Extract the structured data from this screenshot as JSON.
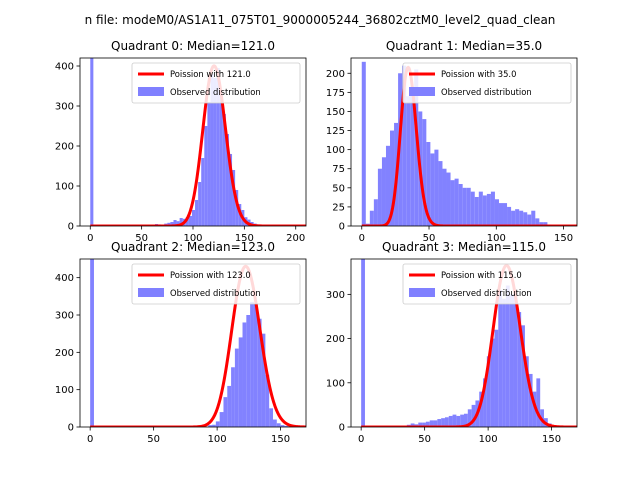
{
  "suptitle": "n file: modeM0/AS1A11_075T01_9000005244_36802cztM0_level2_quad_clean",
  "colors": {
    "hist": "#8080ff",
    "poisson": "#ff0000",
    "axis": "#000000",
    "legend_edge": "#cccccc"
  },
  "chart_data": [
    {
      "type": "bar",
      "title": "Quadrant 0: Median=121.0",
      "xlim": [
        -10,
        210
      ],
      "ylim": [
        0,
        420
      ],
      "xticks": [
        "0",
        "50",
        "100",
        "150",
        "200"
      ],
      "yticks": [
        "0",
        "100",
        "200",
        "300",
        "400"
      ],
      "median": 121.0,
      "peak": 400,
      "bar_width": 3,
      "bars": [
        [
          0,
          420
        ],
        [
          51,
          3
        ],
        [
          54,
          2
        ],
        [
          57,
          3
        ],
        [
          63,
          5
        ],
        [
          66,
          4
        ],
        [
          69,
          3
        ],
        [
          72,
          6
        ],
        [
          75,
          8
        ],
        [
          78,
          10
        ],
        [
          81,
          15
        ],
        [
          84,
          12
        ],
        [
          87,
          20
        ],
        [
          90,
          18
        ],
        [
          93,
          22
        ],
        [
          96,
          25
        ],
        [
          99,
          40
        ],
        [
          102,
          65
        ],
        [
          105,
          110
        ],
        [
          108,
          170
        ],
        [
          111,
          250
        ],
        [
          114,
          310
        ],
        [
          117,
          380
        ],
        [
          120,
          370
        ],
        [
          123,
          395
        ],
        [
          126,
          330
        ],
        [
          129,
          280
        ],
        [
          132,
          230
        ],
        [
          135,
          180
        ],
        [
          138,
          140
        ],
        [
          141,
          90
        ],
        [
          144,
          55
        ],
        [
          147,
          40
        ],
        [
          150,
          22
        ],
        [
          153,
          16
        ],
        [
          156,
          10
        ],
        [
          159,
          6
        ],
        [
          162,
          4
        ],
        [
          165,
          3
        ]
      ],
      "legend": [
        {
          "label": "Poission with 121.0"
        },
        {
          "label": "Observed distribution"
        }
      ]
    },
    {
      "type": "bar",
      "title": "Quadrant 1: Median=35.0",
      "xlim": [
        -8,
        160
      ],
      "ylim": [
        0,
        220
      ],
      "xticks": [
        "0",
        "50",
        "100",
        "150"
      ],
      "yticks": [
        "0",
        "25",
        "50",
        "75",
        "100",
        "125",
        "150",
        "175",
        "200"
      ],
      "median": 35.0,
      "peak": 207,
      "bar_width": 3,
      "bars": [
        [
          0,
          215
        ],
        [
          3,
          3
        ],
        [
          6,
          20
        ],
        [
          9,
          35
        ],
        [
          12,
          75
        ],
        [
          15,
          90
        ],
        [
          18,
          105
        ],
        [
          21,
          125
        ],
        [
          24,
          135
        ],
        [
          27,
          200
        ],
        [
          30,
          210
        ],
        [
          33,
          170
        ],
        [
          36,
          180
        ],
        [
          39,
          205
        ],
        [
          42,
          150
        ],
        [
          45,
          140
        ],
        [
          48,
          110
        ],
        [
          51,
          95
        ],
        [
          54,
          100
        ],
        [
          57,
          85
        ],
        [
          60,
          75
        ],
        [
          63,
          70
        ],
        [
          66,
          60
        ],
        [
          69,
          62
        ],
        [
          72,
          55
        ],
        [
          75,
          50
        ],
        [
          78,
          50
        ],
        [
          81,
          45
        ],
        [
          84,
          38
        ],
        [
          87,
          45
        ],
        [
          90,
          40
        ],
        [
          93,
          42
        ],
        [
          96,
          45
        ],
        [
          99,
          35
        ],
        [
          102,
          30
        ],
        [
          105,
          30
        ],
        [
          108,
          25
        ],
        [
          111,
          20
        ],
        [
          114,
          22
        ],
        [
          117,
          20
        ],
        [
          120,
          18
        ],
        [
          123,
          15
        ],
        [
          126,
          20
        ],
        [
          129,
          10
        ],
        [
          132,
          5
        ],
        [
          135,
          5
        ],
        [
          138,
          2
        ]
      ],
      "legend": [
        {
          "label": "Poission with 35.0"
        },
        {
          "label": "Observed distribution"
        }
      ]
    },
    {
      "type": "bar",
      "title": "Quadrant 2: Median=123.0",
      "xlim": [
        -8,
        170
      ],
      "ylim": [
        0,
        450
      ],
      "xticks": [
        "0",
        "50",
        "100",
        "150"
      ],
      "yticks": [
        "0",
        "100",
        "200",
        "300",
        "400"
      ],
      "median": 123.0,
      "peak": 430,
      "bar_width": 3,
      "bars": [
        [
          0,
          450
        ],
        [
          69,
          3
        ],
        [
          75,
          2
        ],
        [
          81,
          3
        ],
        [
          87,
          4
        ],
        [
          93,
          5
        ],
        [
          96,
          6
        ],
        [
          99,
          15
        ],
        [
          102,
          40
        ],
        [
          105,
          80
        ],
        [
          108,
          110
        ],
        [
          111,
          160
        ],
        [
          114,
          210
        ],
        [
          117,
          240
        ],
        [
          120,
          280
        ],
        [
          123,
          300
        ],
        [
          126,
          335
        ],
        [
          129,
          330
        ],
        [
          132,
          290
        ],
        [
          135,
          250
        ],
        [
          138,
          140
        ],
        [
          141,
          50
        ],
        [
          144,
          20
        ],
        [
          147,
          10
        ],
        [
          150,
          5
        ],
        [
          153,
          3
        ]
      ],
      "legend": [
        {
          "label": "Poission with 123.0"
        },
        {
          "label": "Observed distribution"
        }
      ]
    },
    {
      "type": "bar",
      "title": "Quadrant 3: Median=115.0",
      "xlim": [
        -8,
        170
      ],
      "ylim": [
        0,
        380
      ],
      "xticks": [
        "0",
        "50",
        "100",
        "150"
      ],
      "yticks": [
        "0",
        "100",
        "200",
        "300"
      ],
      "median": 115.0,
      "peak": 365,
      "bar_width": 3,
      "bars": [
        [
          0,
          380
        ],
        [
          36,
          5
        ],
        [
          39,
          8
        ],
        [
          42,
          6
        ],
        [
          45,
          10
        ],
        [
          48,
          10
        ],
        [
          51,
          12
        ],
        [
          54,
          15
        ],
        [
          57,
          15
        ],
        [
          60,
          18
        ],
        [
          63,
          20
        ],
        [
          66,
          22
        ],
        [
          69,
          25
        ],
        [
          72,
          28
        ],
        [
          75,
          25
        ],
        [
          78,
          28
        ],
        [
          81,
          30
        ],
        [
          84,
          40
        ],
        [
          87,
          50
        ],
        [
          90,
          60
        ],
        [
          93,
          80
        ],
        [
          96,
          110
        ],
        [
          99,
          160
        ],
        [
          102,
          200
        ],
        [
          105,
          220
        ],
        [
          108,
          310
        ],
        [
          111,
          290
        ],
        [
          114,
          320
        ],
        [
          117,
          300
        ],
        [
          120,
          300
        ],
        [
          123,
          260
        ],
        [
          126,
          230
        ],
        [
          129,
          160
        ],
        [
          132,
          120
        ],
        [
          135,
          80
        ],
        [
          138,
          110
        ],
        [
          141,
          40
        ],
        [
          144,
          20
        ],
        [
          147,
          8
        ],
        [
          150,
          3
        ]
      ],
      "legend": [
        {
          "label": "Poission with 115.0"
        },
        {
          "label": "Observed distribution"
        }
      ]
    }
  ]
}
